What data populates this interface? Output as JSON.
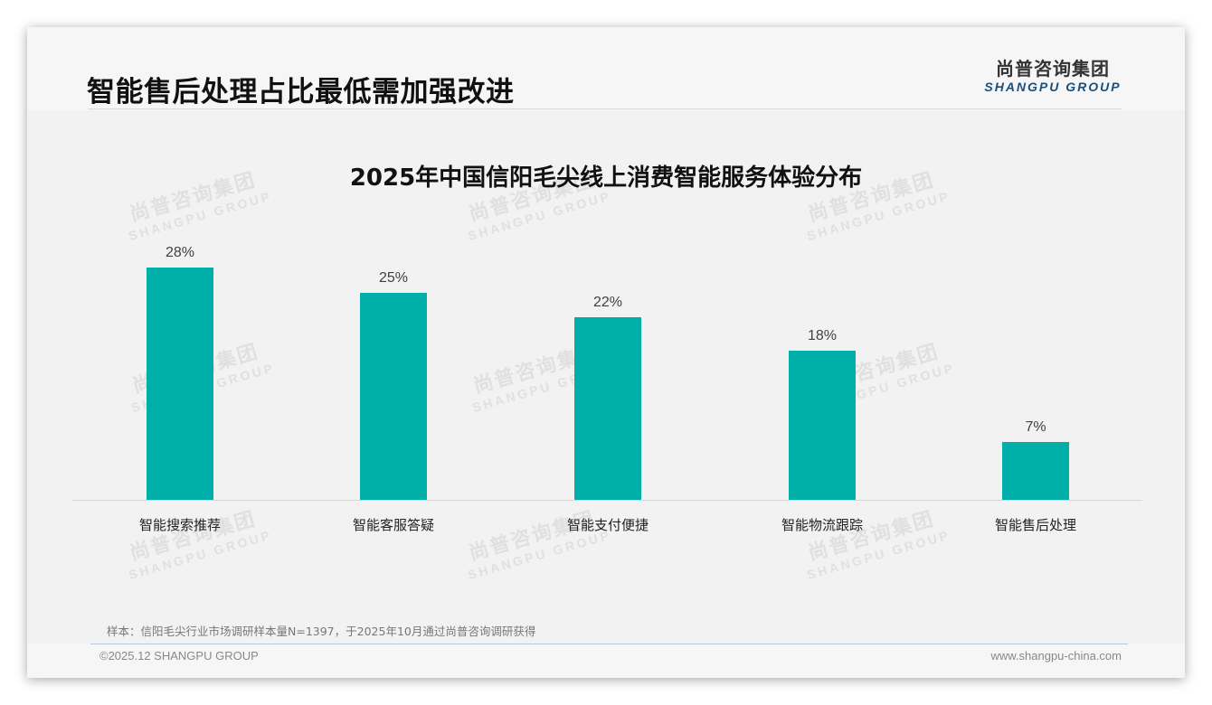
{
  "header": {
    "title": "智能售后处理占比最低需加强改进",
    "logo_cn": "尚普咨询集团",
    "logo_en": "SHANGPU GROUP"
  },
  "watermark": {
    "cn": "尚普咨询集团",
    "en": "SHANGPU GROUP"
  },
  "chart_data": {
    "type": "bar",
    "title": "2025年中国信阳毛尖线上消费智能服务体验分布",
    "categories": [
      "智能搜索推荐",
      "智能客服答疑",
      "智能支付便捷",
      "智能物流跟踪",
      "智能售后处理"
    ],
    "values": [
      28,
      25,
      22,
      18,
      7
    ],
    "value_labels": [
      "28%",
      "25%",
      "22%",
      "18%",
      "7%"
    ],
    "xlabel": "",
    "ylabel": "",
    "unit": "%",
    "ylim": [
      0,
      30
    ],
    "grid": false,
    "legend": "none",
    "bar_color": "#00B0A8"
  },
  "note": "样本：信阳毛尖行业市场调研样本量N=1397，于2025年10月通过尚普咨询调研获得",
  "footer": {
    "copyright": "©2025.12 SHANGPU GROUP",
    "website": "www.shangpu-china.com"
  }
}
